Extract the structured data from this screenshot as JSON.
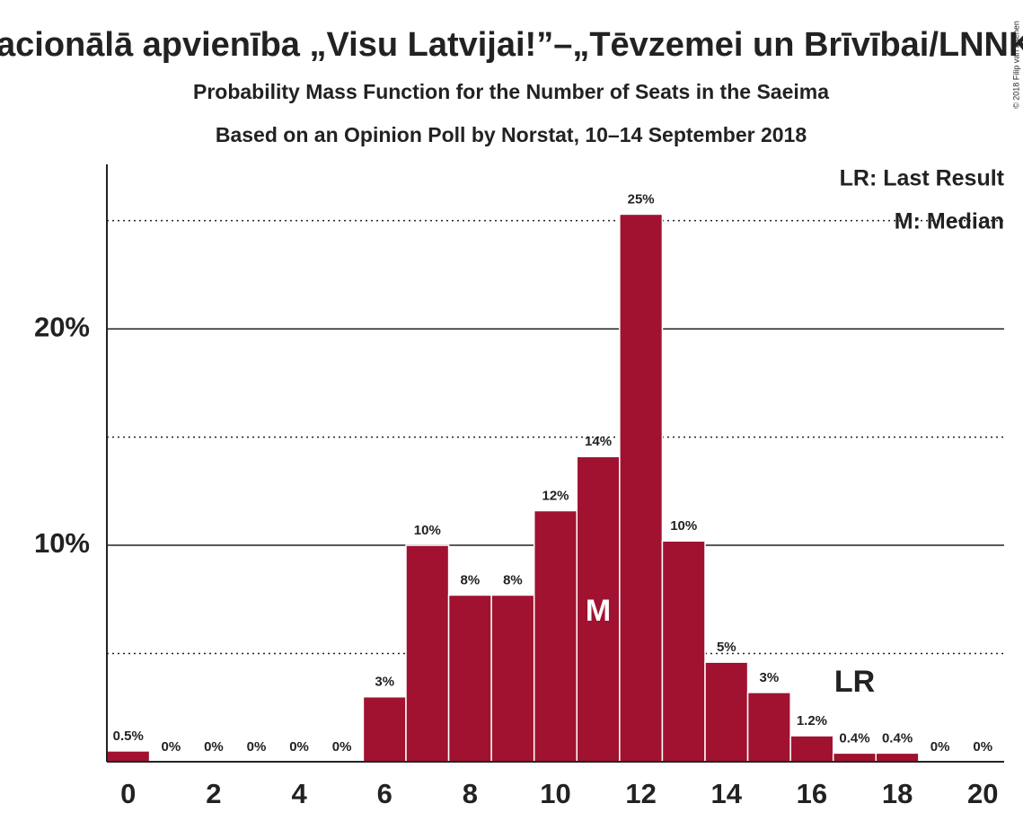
{
  "chart_data": {
    "type": "bar",
    "title": "Nacionālā apvienība „Visu Latvijai!”–„Tēvzemei un Brīvībai/LNNK”",
    "subtitle": "Probability Mass Function for the Number of Seats in the Saeima",
    "subtitle2": "Based on an Opinion Poll by Norstat, 10–14 September 2018",
    "copyright": "© 2018 Filip van Laenen",
    "legend": [
      "LR: Last Result",
      "M: Median"
    ],
    "x": [
      0,
      1,
      2,
      3,
      4,
      5,
      6,
      7,
      8,
      9,
      10,
      11,
      12,
      13,
      14,
      15,
      16,
      17,
      18,
      19,
      20
    ],
    "values": [
      0.5,
      0,
      0,
      0,
      0,
      0,
      3.0,
      10.0,
      7.7,
      7.7,
      11.6,
      14.1,
      25.3,
      10.2,
      4.6,
      3.2,
      1.2,
      0.4,
      0.4,
      0,
      0
    ],
    "value_labels": [
      "0.5%",
      "0%",
      "0%",
      "0%",
      "0%",
      "0%",
      "3%",
      "10%",
      "8%",
      "8%",
      "12%",
      "14%",
      "25%",
      "10%",
      "5%",
      "3%",
      "1.2%",
      "0.4%",
      "0.4%",
      "0%",
      "0%"
    ],
    "color": "#a01230",
    "xlim": [
      -0.5,
      20.5
    ],
    "xticks": [
      0,
      2,
      4,
      6,
      8,
      10,
      12,
      14,
      16,
      18,
      20
    ],
    "ylim": [
      0,
      27.6
    ],
    "yticks": [
      {
        "value": 10,
        "label": "10%"
      },
      {
        "value": 20,
        "label": "20%"
      }
    ],
    "minor_yticks": [
      5,
      15,
      25
    ],
    "grid": true,
    "median": {
      "x": 11,
      "label": "M"
    },
    "last_result": {
      "x": 17,
      "label": "LR"
    }
  }
}
